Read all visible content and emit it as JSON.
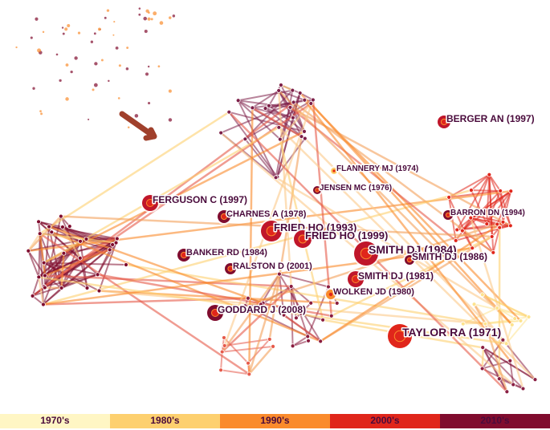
{
  "nodes": [
    {
      "label": "BERGER AN (1997)"
    },
    {
      "label": "FLANNERY MJ (1974)"
    },
    {
      "label": "JENSEN MC (1976)"
    },
    {
      "label": "FERGUSON C (1997)"
    },
    {
      "label": "CHARNES A (1978)"
    },
    {
      "label": "BARRON DN (1994)"
    },
    {
      "label": "FRIED HO (1993)"
    },
    {
      "label": "FRIED HO (1999)"
    },
    {
      "label": "SMITH DJ (1984)"
    },
    {
      "label": "BANKER RD (1984)"
    },
    {
      "label": "SMITH DJ (1986)"
    },
    {
      "label": "RALSTON D (2001)"
    },
    {
      "label": "SMITH DJ (1981)"
    },
    {
      "label": "WOLKEN JD (1980)"
    },
    {
      "label": "GODDARD J (2008)"
    },
    {
      "label": "TAYLOR RA (1971)"
    }
  ],
  "legend": [
    {
      "label": "1970's",
      "color": "#fff6c4"
    },
    {
      "label": "1980's",
      "color": "#fdd06f"
    },
    {
      "label": "1990's",
      "color": "#fa8b2c"
    },
    {
      "label": "2000's",
      "color": "#e0261b"
    },
    {
      "label": "2010's",
      "color": "#800c2e"
    }
  ]
}
